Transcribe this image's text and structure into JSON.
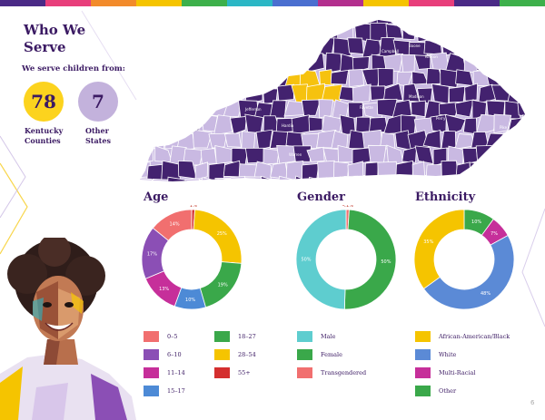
{
  "page": {
    "title": "Who We Serve",
    "subtitle": "We serve children from:",
    "page_number": "6",
    "stripe_colors": [
      "#4a2a86",
      "#e83e7b",
      "#f28b2b",
      "#f5c400",
      "#3db04b",
      "#2bb7c5",
      "#4a6fd0",
      "#b32f8e",
      "#f5c400",
      "#e83e7b",
      "#4a2a86",
      "#3db04b"
    ]
  },
  "stats": [
    {
      "value": "78",
      "label_line1": "Kentucky",
      "label_line2": "Counties",
      "color": "#fcd31e"
    },
    {
      "value": "7",
      "label_line1": "Other",
      "label_line2": "States",
      "color": "#c3b2dc"
    }
  ],
  "map": {
    "colors": {
      "dark": "#43226f",
      "light": "#c9b9e2",
      "highlight": "#f6c20f"
    },
    "county_labels": [
      "Boone",
      "Kenton",
      "Campbell",
      "Fayette",
      "Jefferson",
      "Warren",
      "Pike",
      "Perry",
      "Madison",
      "Hardin"
    ]
  },
  "age": {
    "title": "Age",
    "legend": [
      {
        "label": "0–5",
        "color": "#f16f6f"
      },
      {
        "label": "6–10",
        "color": "#8b4fb5"
      },
      {
        "label": "11–14",
        "color": "#c62f9a"
      },
      {
        "label": "15–17",
        "color": "#4d8ad6"
      },
      {
        "label": "18–27",
        "color": "#3aa84a"
      },
      {
        "label": "28–54",
        "color": "#f5c400"
      },
      {
        "label": "55+",
        "color": "#d42f2f"
      }
    ]
  },
  "gender": {
    "title": "Gender",
    "legend": [
      {
        "label": "Male",
        "color": "#5ecdcf"
      },
      {
        "label": "Female",
        "color": "#3aa84a"
      },
      {
        "label": "Transgendered",
        "color": "#f16f6f"
      }
    ]
  },
  "ethnicity": {
    "title": "Ethnicity",
    "legend": [
      {
        "label": "African-American/Black",
        "color": "#f5c400"
      },
      {
        "label": "White",
        "color": "#5b8ad6"
      },
      {
        "label": "Multi-Racial",
        "color": "#c62f9a"
      },
      {
        "label": "Other",
        "color": "#3aa84a"
      }
    ]
  },
  "chart_data": [
    {
      "type": "pie",
      "title": "Age",
      "donut": true,
      "categories": [
        "55+",
        "28–54",
        "18–27",
        "15–17",
        "11–14",
        "6–10",
        "0–5"
      ],
      "values": [
        1,
        25,
        19,
        10,
        13,
        17,
        14
      ],
      "labels": [
        "1%",
        "25%",
        "19%",
        "10%",
        "13%",
        "17%",
        "14%"
      ],
      "colors": [
        "#d42f2f",
        "#f5c400",
        "#3aa84a",
        "#4d8ad6",
        "#c62f9a",
        "#8b4fb5",
        "#f16f6f"
      ]
    },
    {
      "type": "pie",
      "title": "Gender",
      "donut": true,
      "categories": [
        "Transgendered",
        "Female",
        "Male"
      ],
      "values": [
        1,
        50,
        50
      ],
      "labels": [
        "<1%",
        "50%",
        "50%"
      ],
      "colors": [
        "#f16f6f",
        "#3aa84a",
        "#5ecdcf"
      ]
    },
    {
      "type": "pie",
      "title": "Ethnicity",
      "donut": true,
      "categories": [
        "Other",
        "Multi-Racial",
        "White",
        "African-American/Black"
      ],
      "values": [
        10,
        7,
        48,
        35
      ],
      "labels": [
        "10%",
        "7%",
        "48%",
        "35%"
      ],
      "colors": [
        "#3aa84a",
        "#c62f9a",
        "#5b8ad6",
        "#f5c400"
      ]
    }
  ]
}
